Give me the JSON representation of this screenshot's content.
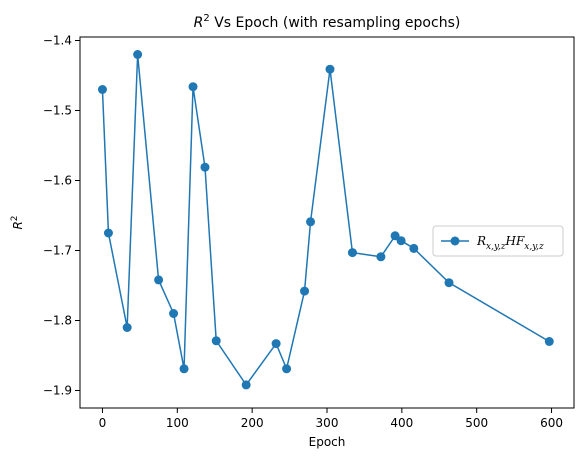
{
  "chart_data": {
    "type": "line",
    "title": "R² Vs Epoch (with resampling epochs)",
    "xlabel": "Epoch",
    "ylabel": "R²",
    "xlim": [
      -30,
      630
    ],
    "ylim": [
      -1.925,
      -1.395
    ],
    "xticks": [
      0,
      100,
      200,
      300,
      400,
      500,
      600
    ],
    "yticks": [
      -1.9,
      -1.8,
      -1.7,
      -1.6,
      -1.5,
      -1.4
    ],
    "grid": false,
    "legend_position": "center-right",
    "series": [
      {
        "name": "R_{x,y,z} HF_{x,y,z}",
        "color": "#1f77b4",
        "marker": "circle",
        "x": [
          0,
          8,
          33,
          47,
          75,
          95,
          109,
          121,
          137,
          152,
          192,
          232,
          246,
          270,
          278,
          304,
          334,
          372,
          391,
          399,
          416,
          463,
          597
        ],
        "y": [
          -1.47,
          -1.675,
          -1.81,
          -1.42,
          -1.742,
          -1.79,
          -1.869,
          -1.466,
          -1.581,
          -1.829,
          -1.892,
          -1.833,
          -1.869,
          -1.758,
          -1.659,
          -1.441,
          -1.703,
          -1.709,
          -1.679,
          -1.686,
          -1.697,
          -1.746,
          -1.83
        ]
      }
    ]
  }
}
